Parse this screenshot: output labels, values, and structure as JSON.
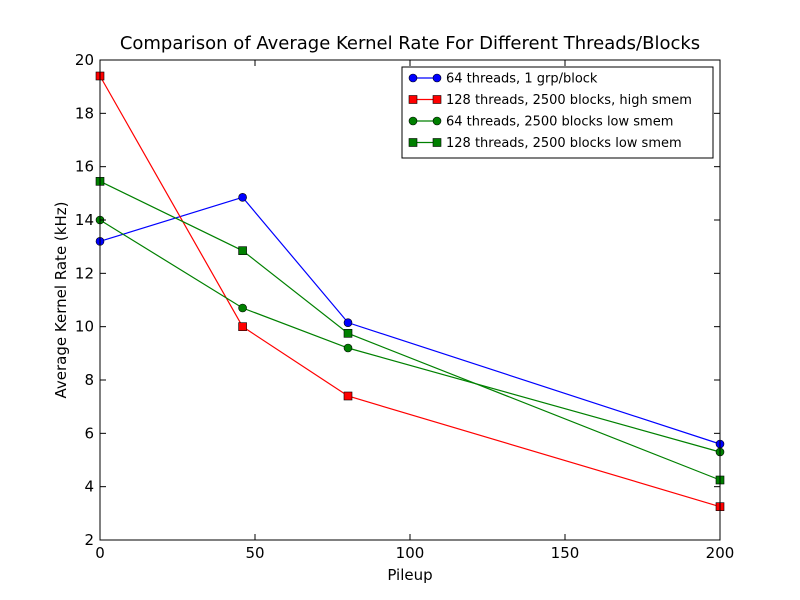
{
  "chart_data": {
    "type": "line",
    "title": "Comparison of Average Kernel Rate For Different Threads/Blocks",
    "xlabel": "Pileup",
    "ylabel": "Average Kernel Rate (kHz)",
    "xlim": [
      0,
      200
    ],
    "ylim": [
      2,
      20
    ],
    "xticks": [
      0,
      50,
      100,
      150,
      200
    ],
    "yticks": [
      2,
      4,
      6,
      8,
      10,
      12,
      14,
      16,
      18,
      20
    ],
    "grid": false,
    "legend_position": "top-right",
    "x": [
      0,
      46,
      80,
      200
    ],
    "series": [
      {
        "name": "64 threads, 1 grp/block",
        "values": [
          13.2,
          14.85,
          10.15,
          5.6
        ],
        "color": "#0000ff",
        "marker": "circle"
      },
      {
        "name": "128 threads, 2500 blocks, high smem",
        "values": [
          19.4,
          10.0,
          7.4,
          3.25
        ],
        "color": "#ff0000",
        "marker": "square"
      },
      {
        "name": "64 threads, 2500 blocks low smem",
        "values": [
          14.0,
          10.7,
          9.2,
          5.3
        ],
        "color": "#008000",
        "marker": "circle"
      },
      {
        "name": "128 threads, 2500 blocks low smem",
        "values": [
          15.45,
          12.85,
          9.75,
          4.25
        ],
        "color": "#008000",
        "marker": "square"
      }
    ]
  }
}
